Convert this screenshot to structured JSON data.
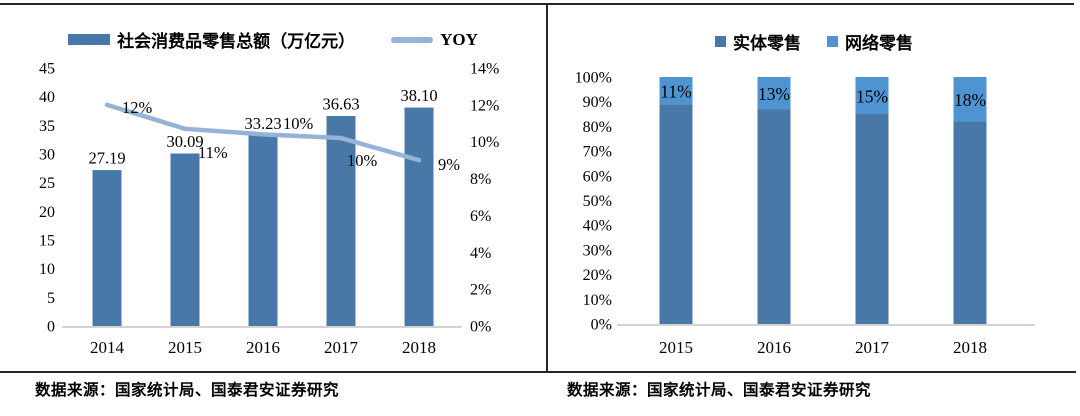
{
  "left_panel": {
    "legend": {
      "bar_label": "社会消费品零售总额（万亿元）",
      "line_label": "YOY"
    },
    "source": "数据来源：国家统计局、国泰君安证券研究"
  },
  "right_panel": {
    "legend": {
      "physical_label": "实体零售",
      "online_label": "网络零售"
    },
    "source": "数据来源：国家统计局、国泰君安证券研究"
  },
  "colors": {
    "bar_dark": "#4878A8",
    "line_light": "#95B3D7",
    "online_blue": "#4F94D2",
    "axis_line": "#C9C3C3",
    "rule": "#262626"
  },
  "chart_data": [
    {
      "type": "bar+line",
      "title": "",
      "categories": [
        "2014",
        "2015",
        "2016",
        "2017",
        "2018"
      ],
      "series": [
        {
          "name": "社会消费品零售总额（万亿元）",
          "type": "bar",
          "axis": "left",
          "values": [
            27.19,
            30.09,
            33.23,
            36.63,
            38.1
          ],
          "labels": [
            "27.19",
            "30.09",
            "33.23",
            "36.63",
            "38.10"
          ],
          "color": "#4878A8"
        },
        {
          "name": "YOY",
          "type": "line",
          "axis": "right",
          "values": [
            12.0,
            10.7,
            10.4,
            10.2,
            9.0
          ],
          "labels": [
            "12%",
            "11%",
            "10%",
            "10%",
            "9%"
          ],
          "color": "#95B3D7"
        }
      ],
      "left_axis": {
        "min": 0,
        "max": 45,
        "step": 5,
        "ticks": [
          "45",
          "40",
          "35",
          "30",
          "25",
          "20",
          "15",
          "10",
          "5",
          "0"
        ]
      },
      "right_axis": {
        "min": 0,
        "max": 14,
        "step": 2,
        "ticks": [
          "14%",
          "12%",
          "10%",
          "8%",
          "6%",
          "4%",
          "2%",
          "0%"
        ]
      },
      "grid": false,
      "legend_position": "top",
      "source": "数据来源：国家统计局、国泰君安证券研究"
    },
    {
      "type": "stacked-bar",
      "title": "",
      "categories": [
        "2015",
        "2016",
        "2017",
        "2018"
      ],
      "series": [
        {
          "name": "实体零售",
          "values": [
            89,
            87,
            85,
            82
          ],
          "labels": [],
          "color": "#4878A8"
        },
        {
          "name": "网络零售",
          "values": [
            11,
            13,
            15,
            18
          ],
          "labels": [
            "11%",
            "13%",
            "15%",
            "18%"
          ],
          "color": "#4F94D2"
        }
      ],
      "y_axis": {
        "min": 0,
        "max": 100,
        "step": 10,
        "ticks": [
          "100%",
          "90%",
          "80%",
          "70%",
          "60%",
          "50%",
          "40%",
          "30%",
          "20%",
          "10%",
          "0%"
        ]
      },
      "grid": false,
      "legend_position": "top",
      "source": "数据来源：国家统计局、国泰君安证券研究"
    }
  ]
}
